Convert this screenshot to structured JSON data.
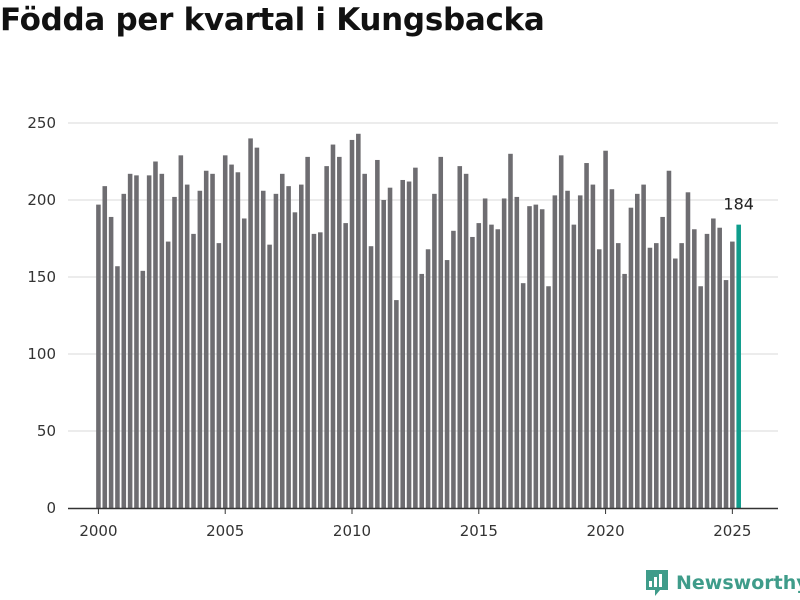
{
  "title": "Födda per kvartal i Kungsbacka",
  "brand": {
    "name": "Newsworthy",
    "color": "#3f9c8a"
  },
  "colors": {
    "bar": "#6e6d71",
    "highlight": "#0f9d8c",
    "grid": "#d9d9d9",
    "axis": "#333333"
  },
  "chart_data": {
    "type": "bar",
    "title": "Födda per kvartal i Kungsbacka",
    "xlabel": "",
    "ylabel": "",
    "x_start": 2000,
    "periods_per_year": 4,
    "xlim": [
      1998.8,
      2026.8
    ],
    "x_ticks": [
      2000,
      2005,
      2010,
      2015,
      2020,
      2025
    ],
    "ylim": [
      0,
      250
    ],
    "y_ticks": [
      0,
      50,
      100,
      150,
      200,
      250
    ],
    "grid": true,
    "highlight_last": true,
    "last_value_label": "184",
    "values": [
      197,
      209,
      189,
      157,
      204,
      217,
      216,
      154,
      216,
      225,
      217,
      173,
      202,
      229,
      210,
      178,
      206,
      219,
      217,
      172,
      229,
      223,
      218,
      188,
      240,
      234,
      206,
      171,
      204,
      217,
      209,
      192,
      210,
      228,
      178,
      179,
      222,
      236,
      228,
      185,
      239,
      243,
      217,
      170,
      226,
      200,
      208,
      135,
      213,
      212,
      221,
      152,
      168,
      204,
      228,
      161,
      180,
      222,
      217,
      176,
      185,
      201,
      184,
      181,
      201,
      230,
      202,
      146,
      196,
      197,
      194,
      144,
      203,
      229,
      206,
      184,
      203,
      224,
      210,
      168,
      232,
      207,
      172,
      152,
      195,
      204,
      210,
      169,
      172,
      189,
      219,
      162,
      172,
      205,
      181,
      144,
      178,
      188,
      182,
      148,
      173,
      184
    ]
  }
}
